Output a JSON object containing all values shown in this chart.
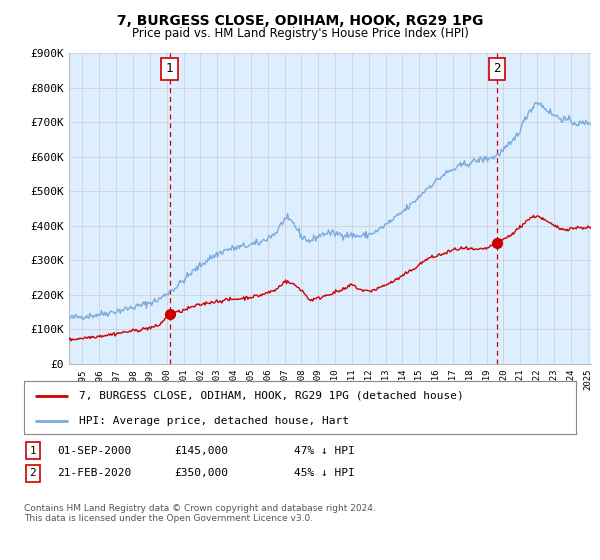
{
  "title": "7, BURGESS CLOSE, ODIHAM, HOOK, RG29 1PG",
  "subtitle": "Price paid vs. HM Land Registry's House Price Index (HPI)",
  "ylabel_ticks": [
    "£0",
    "£100K",
    "£200K",
    "£300K",
    "£400K",
    "£500K",
    "£600K",
    "£700K",
    "£800K",
    "£900K"
  ],
  "ylim": [
    0,
    900000
  ],
  "xlim_start": 1994.7,
  "xlim_end": 2025.7,
  "transaction1_date": 2000.67,
  "transaction1_price": 145000,
  "transaction2_date": 2020.12,
  "transaction2_price": 350000,
  "legend_red": "7, BURGESS CLOSE, ODIHAM, HOOK, RG29 1PG (detached house)",
  "legend_blue": "HPI: Average price, detached house, Hart",
  "footer": "Contains HM Land Registry data © Crown copyright and database right 2024.\nThis data is licensed under the Open Government Licence v3.0.",
  "red_color": "#cc0000",
  "blue_color": "#7aaadd",
  "vline_color": "#cc0000",
  "grid_color": "#cccccc",
  "background_color": "#ffffff",
  "plot_bg_color": "#ddeeff",
  "title_fontsize": 10,
  "subtitle_fontsize": 8.5,
  "tick_fontsize": 8,
  "legend_fontsize": 8
}
